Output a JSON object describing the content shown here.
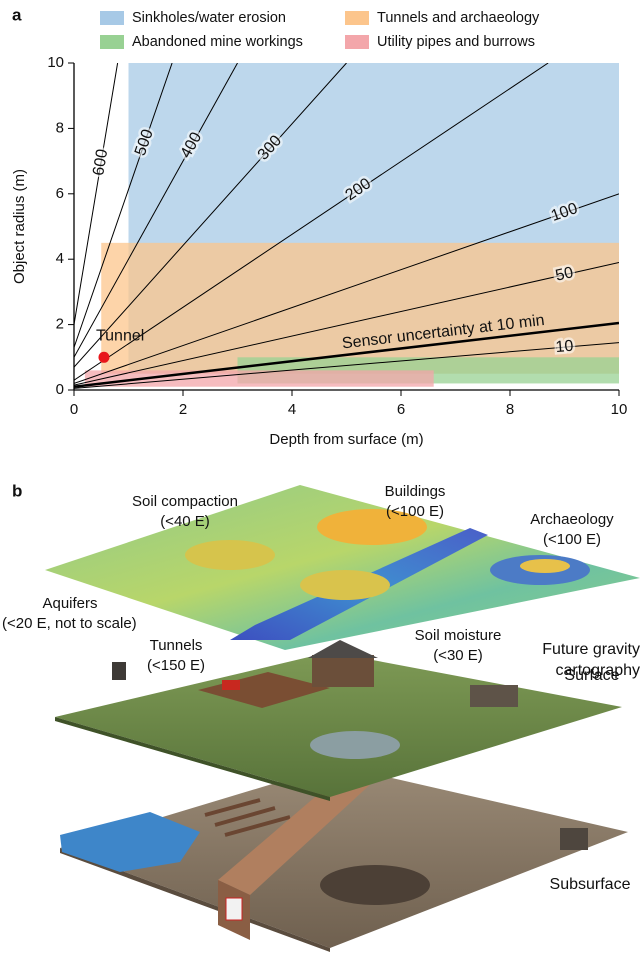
{
  "chart_data": {
    "type": "region-contour",
    "panel_label": "a",
    "x_label": "Depth from surface (m)",
    "y_label": "Object radius (m)",
    "xlim": [
      0,
      10
    ],
    "ylim": [
      0,
      10
    ],
    "xticks": [
      0,
      2,
      4,
      6,
      8,
      10
    ],
    "yticks": [
      0,
      2,
      4,
      6,
      8,
      10
    ],
    "regions": [
      {
        "name": "Sinkholes/water erosion",
        "color": "#a7c9e6",
        "x": [
          1,
          10
        ],
        "y": [
          0.5,
          10
        ]
      },
      {
        "name": "Tunnels and archaeology",
        "color": "#fcc58c",
        "x": [
          0.5,
          10
        ],
        "y": [
          0.5,
          4.5
        ]
      },
      {
        "name": "Abandoned mine workings",
        "color": "#98d193",
        "x": [
          3,
          10
        ],
        "y": [
          0.2,
          1.0
        ]
      },
      {
        "name": "Utility pipes and burrows",
        "color": "#f3a6aa",
        "x": [
          0.2,
          6.6
        ],
        "y": [
          0.1,
          0.6
        ]
      }
    ],
    "contours": [
      {
        "name": "600",
        "x": [
          0,
          0.8
        ],
        "y": [
          2.0,
          10
        ],
        "line_width": 1
      },
      {
        "name": "500",
        "x": [
          0,
          1.8
        ],
        "y": [
          1.3,
          10
        ],
        "line_width": 1
      },
      {
        "name": "400",
        "x": [
          0,
          3.0
        ],
        "y": [
          1.0,
          10
        ],
        "line_width": 1
      },
      {
        "name": "300",
        "x": [
          0,
          5.0
        ],
        "y": [
          0.7,
          10
        ],
        "line_width": 1
      },
      {
        "name": "200",
        "x": [
          0,
          8.7
        ],
        "y": [
          0.3,
          10
        ],
        "line_width": 1
      },
      {
        "name": "100",
        "x": [
          0,
          10
        ],
        "y": [
          0.2,
          6.0
        ],
        "line_width": 1
      },
      {
        "name": "50",
        "x": [
          0,
          10
        ],
        "y": [
          0.15,
          3.9
        ],
        "line_width": 1
      },
      {
        "name": "Sensor uncertainty at 10 min",
        "x": [
          0,
          10
        ],
        "y": [
          0.1,
          2.05
        ],
        "line_width": 2.5
      },
      {
        "name": "10",
        "x": [
          0,
          10
        ],
        "y": [
          0.05,
          1.45
        ],
        "line_width": 1
      }
    ],
    "points": [
      {
        "name": "Tunnel",
        "color": "#e8161b",
        "x": 0.55,
        "y": 1.0
      }
    ]
  },
  "panel_b": {
    "panel_label": "b",
    "labels": [
      [
        "Soil compaction",
        "(<40 E)"
      ],
      [
        "Buildings",
        "(<100 E)"
      ],
      [
        "Archaeology",
        "(<100 E)"
      ],
      [
        "Aquifers",
        "(<20 E, not to scale)"
      ],
      [
        "Tunnels",
        "(<150 E)"
      ],
      [
        "Soil moisture",
        "(<30 E)"
      ]
    ],
    "layers": [
      "Future gravity",
      "cartography",
      "Surface",
      "Subsurface"
    ]
  }
}
